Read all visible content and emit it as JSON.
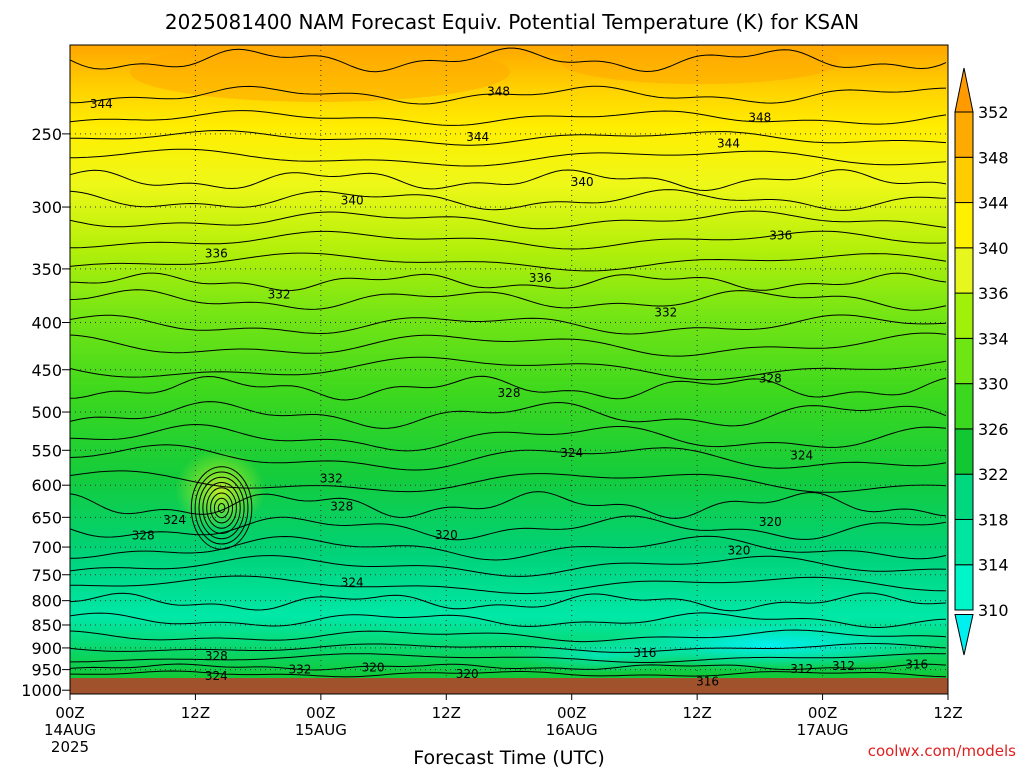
{
  "chart_data": {
    "type": "heatmap",
    "title": "2025081400 NAM Forecast Equiv. Potential Temperature (K) for KSAN",
    "xlabel": "Forecast Time (UTC)",
    "ylabel": "",
    "y_scale": "log-pressure",
    "y_ticks": [
      250,
      300,
      350,
      400,
      450,
      500,
      550,
      600,
      650,
      700,
      750,
      800,
      850,
      900,
      950,
      1000
    ],
    "x_ticks": [
      {
        "hour": 0,
        "label": "00Z",
        "date": "14AUG",
        "year": "2025"
      },
      {
        "hour": 12,
        "label": "12Z"
      },
      {
        "hour": 24,
        "label": "00Z",
        "date": "15AUG"
      },
      {
        "hour": 36,
        "label": "12Z"
      },
      {
        "hour": 48,
        "label": "00Z",
        "date": "16AUG"
      },
      {
        "hour": 60,
        "label": "12Z"
      },
      {
        "hour": 72,
        "label": "00Z",
        "date": "17AUG"
      },
      {
        "hour": 84,
        "label": "12Z"
      }
    ],
    "colorbar": {
      "levels": [
        310,
        314,
        318,
        322,
        326,
        330,
        334,
        336,
        340,
        344,
        348,
        352
      ],
      "colors": [
        "#00f0f0",
        "#00f5c8",
        "#00e6a0",
        "#00d880",
        "#12c832",
        "#3cd820",
        "#6ee614",
        "#a0f00a",
        "#e6f61e",
        "#fff000",
        "#ffcc00",
        "#ffaa00",
        "#ff9a00"
      ]
    },
    "contour_labels": [
      {
        "x": 3,
        "p": 232,
        "v": "344"
      },
      {
        "x": 41,
        "p": 225,
        "v": "348"
      },
      {
        "x": 39,
        "p": 252,
        "v": "344"
      },
      {
        "x": 66,
        "p": 240,
        "v": "348"
      },
      {
        "x": 63,
        "p": 256,
        "v": "344"
      },
      {
        "x": 49,
        "p": 282,
        "v": "340"
      },
      {
        "x": 27,
        "p": 295,
        "v": "340"
      },
      {
        "x": 68,
        "p": 322,
        "v": "336"
      },
      {
        "x": 14,
        "p": 337,
        "v": "336"
      },
      {
        "x": 45,
        "p": 358,
        "v": "336"
      },
      {
        "x": 20,
        "p": 373,
        "v": "332"
      },
      {
        "x": 57,
        "p": 390,
        "v": "332"
      },
      {
        "x": 67,
        "p": 460,
        "v": "328"
      },
      {
        "x": 42,
        "p": 477,
        "v": "328"
      },
      {
        "x": 48,
        "p": 554,
        "v": "324"
      },
      {
        "x": 70,
        "p": 557,
        "v": "324"
      },
      {
        "x": 25,
        "p": 590,
        "v": "332"
      },
      {
        "x": 26,
        "p": 633,
        "v": "328"
      },
      {
        "x": 10,
        "p": 654,
        "v": "324"
      },
      {
        "x": 7,
        "p": 680,
        "v": "328"
      },
      {
        "x": 36,
        "p": 679,
        "v": "320"
      },
      {
        "x": 67,
        "p": 658,
        "v": "320"
      },
      {
        "x": 64,
        "p": 706,
        "v": "320"
      },
      {
        "x": 27,
        "p": 765,
        "v": "324"
      },
      {
        "x": 14,
        "p": 918,
        "v": "328"
      },
      {
        "x": 29,
        "p": 945,
        "v": "320"
      },
      {
        "x": 22,
        "p": 950,
        "v": "332"
      },
      {
        "x": 55,
        "p": 912,
        "v": "316"
      },
      {
        "x": 81,
        "p": 938,
        "v": "316"
      },
      {
        "x": 70,
        "p": 948,
        "v": "312"
      },
      {
        "x": 74,
        "p": 942,
        "v": "312"
      },
      {
        "x": 38,
        "p": 960,
        "v": "320"
      },
      {
        "x": 14,
        "p": 965,
        "v": "324"
      },
      {
        "x": 61,
        "p": 979,
        "v": "316"
      }
    ]
  },
  "credit": "coolwx.com/models"
}
